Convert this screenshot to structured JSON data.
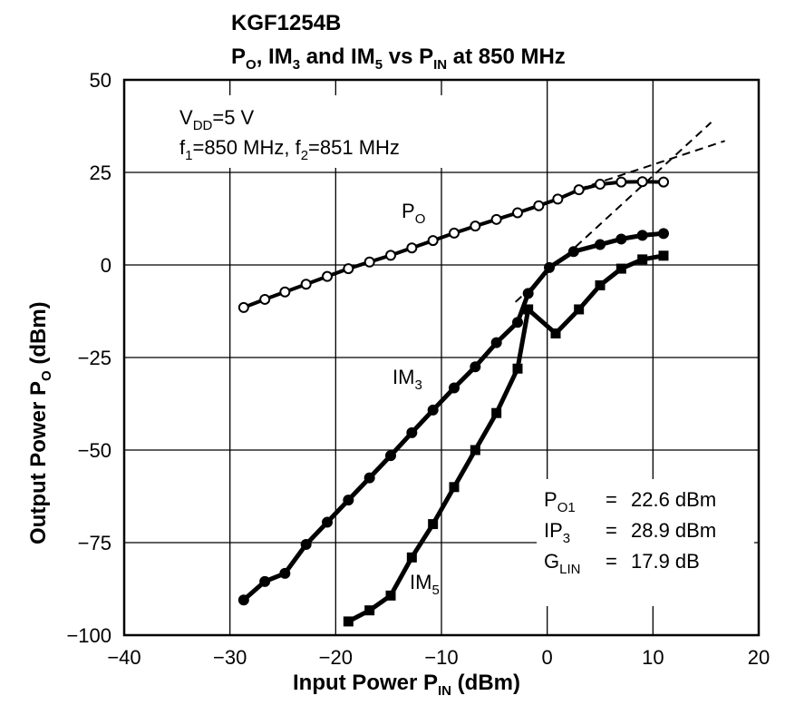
{
  "chart_data": {
    "type": "line",
    "title": "KGF1254B",
    "subtitle": {
      "parts": [
        [
          "P",
          "O",
          ", IM",
          "3",
          " and IM",
          "5",
          " vs P",
          "IN",
          " at 850 MHz"
        ]
      ]
    },
    "xlabel": {
      "main": "Input Power  P",
      "sub": "IN",
      "tail": " (dBm)"
    },
    "ylabel": {
      "main": "Output Power  P",
      "sub": "O",
      "tail": "  (dBm)"
    },
    "xlim": [
      -40,
      20
    ],
    "ylim": [
      -100,
      50
    ],
    "x_ticks": [
      -40,
      -30,
      -20,
      -10,
      0,
      10,
      20
    ],
    "x_tick_labels": [
      "−40",
      "−30",
      "−20",
      "−10",
      "0",
      "10",
      "20"
    ],
    "y_ticks": [
      50,
      25,
      0,
      -25,
      -50,
      -75,
      -100
    ],
    "y_tick_labels": [
      "50",
      "25",
      "0",
      "−25",
      "−50",
      "−75",
      "−100"
    ],
    "grid": true,
    "series": [
      {
        "name": "PO",
        "marker": "open-circle",
        "x": [
          -28.7,
          -26.7,
          -24.8,
          -22.8,
          -20.8,
          -18.8,
          -16.8,
          -14.8,
          -12.8,
          -10.8,
          -8.8,
          -6.8,
          -4.8,
          -2.8,
          -0.8,
          1.0,
          3.0,
          5.0,
          7.0,
          9.0,
          11.0
        ],
        "y": [
          -11.5,
          -9.3,
          -7.3,
          -5.2,
          -3.1,
          -1.0,
          0.8,
          2.6,
          4.6,
          6.6,
          8.6,
          10.5,
          12.3,
          14.1,
          16.0,
          17.8,
          20.3,
          21.8,
          22.4,
          22.5,
          22.4
        ]
      },
      {
        "name": "IM3",
        "marker": "filled-circle",
        "x": [
          -28.7,
          -26.7,
          -24.8,
          -22.8,
          -20.8,
          -18.8,
          -16.8,
          -14.8,
          -12.8,
          -10.8,
          -8.8,
          -6.8,
          -4.8,
          -2.8,
          -1.8,
          0.2,
          2.5,
          5.0,
          7.0,
          9.0,
          11.0
        ],
        "y": [
          -90.5,
          -85.5,
          -83.3,
          -75.5,
          -69.5,
          -63.5,
          -57.5,
          -51.5,
          -45.3,
          -39.2,
          -33.2,
          -27.5,
          -21.0,
          -15.5,
          -7.7,
          -0.7,
          3.6,
          5.5,
          7.0,
          8.0,
          8.5
        ]
      },
      {
        "name": "IM5",
        "marker": "filled-square",
        "x": [
          -18.8,
          -16.8,
          -14.8,
          -12.8,
          -10.8,
          -8.8,
          -6.8,
          -4.8,
          -2.8,
          -1.8,
          0.8,
          3.0,
          5.0,
          7.0,
          9.0,
          11.0
        ],
        "y": [
          -96.3,
          -93.3,
          -89.3,
          -79.0,
          -70.0,
          -60.0,
          -50.0,
          -40.0,
          -28.0,
          -12.0,
          -18.5,
          -12.0,
          -5.5,
          -1.0,
          1.5,
          2.5
        ]
      }
    ],
    "extrapolations": [
      {
        "style": "dashed",
        "x": [
          3.0,
          16.8
        ],
        "y": [
          20.5,
          33.5
        ]
      },
      {
        "style": "dashed",
        "x": [
          -3.0,
          15.5
        ],
        "y": [
          -10.0,
          38.5
        ]
      }
    ],
    "labels": {
      "po": {
        "main": "P",
        "sub": "O"
      },
      "im3": {
        "main": "IM",
        "sub": "3"
      },
      "im5": {
        "main": "IM",
        "sub": "5"
      }
    },
    "conditions": {
      "vdd": {
        "main": "V",
        "sub": "DD",
        "tail": "=5 V"
      },
      "freq": {
        "a": "f",
        "a_sub": "1",
        "a_tail": "=850 MHz, f",
        "b_sub": "2",
        "b_tail": "=851 MHz"
      }
    },
    "results": {
      "po1": {
        "main": "P",
        "sub": "O1",
        "eq": "=",
        "value": "22.6 dBm"
      },
      "ip3": {
        "main": "IP",
        "sub": "3",
        "eq": "=",
        "value": "28.9 dBm"
      },
      "glin": {
        "main": "G",
        "sub": "LIN",
        "eq": "=",
        "value": "17.9 dB"
      }
    }
  }
}
